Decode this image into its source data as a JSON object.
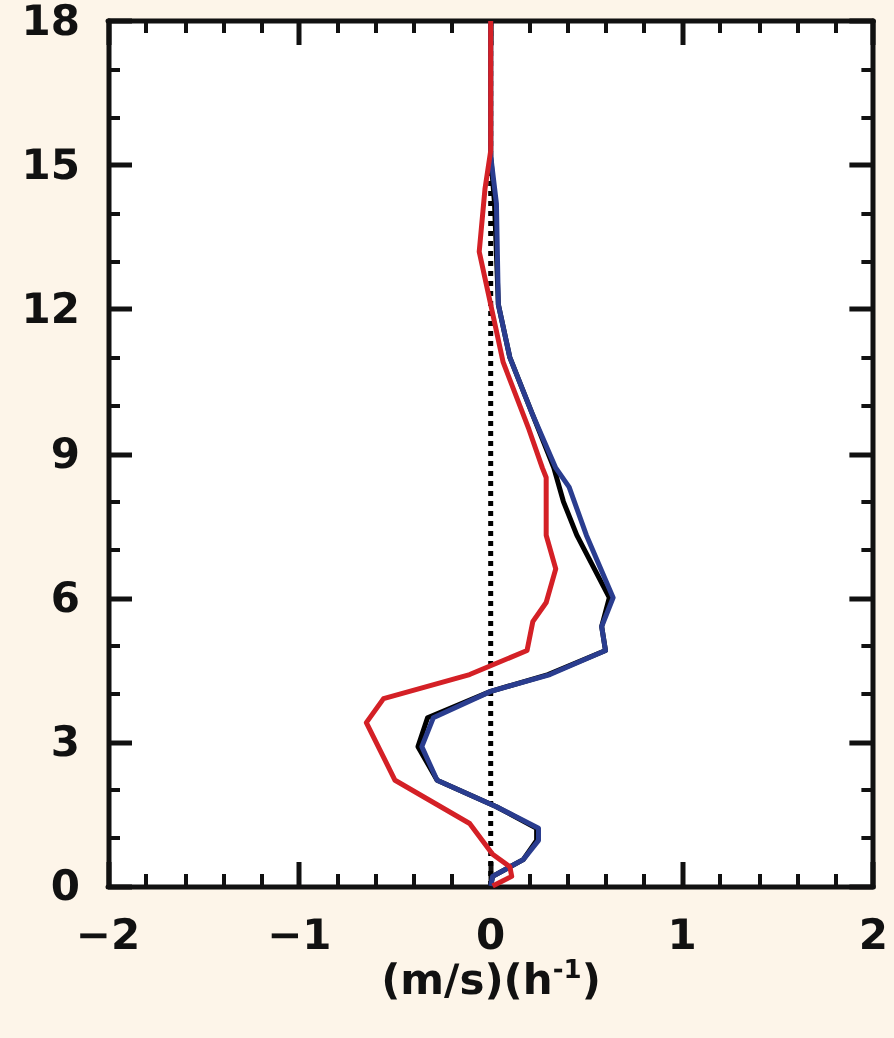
{
  "chart_data": {
    "type": "line",
    "xlabel": "(m/s)(h$^{-1}$)",
    "xlim": [
      -2,
      2
    ],
    "xticks": [
      -2,
      -1,
      0,
      1,
      2
    ],
    "ylim": [
      0,
      18
    ],
    "yticks": [
      0,
      3,
      6,
      9,
      12,
      15,
      18
    ],
    "marker": "none",
    "line_style": "solid",
    "ref_lines": [
      {
        "axis": "x",
        "value": 0,
        "color": "#000000",
        "line_style": "dotted"
      }
    ],
    "series": [
      {
        "color": "#000000",
        "x": [
          0,
          0.01,
          0.17,
          0.24,
          0.24,
          0.03,
          -0.28,
          -0.38,
          -0.33,
          0,
          0.3,
          0.6,
          0.58,
          0.62,
          0.45,
          0.38,
          0.33,
          0.22,
          0.1,
          0.04,
          0.02,
          0,
          0
        ],
        "values": [
          0,
          0.2,
          0.55,
          0.95,
          1.2,
          1.65,
          2.2,
          2.9,
          3.5,
          4.05,
          4.4,
          4.9,
          5.4,
          6,
          7.3,
          8,
          8.7,
          9.8,
          11,
          12.1,
          14.2,
          15.2,
          18
        ]
      },
      {
        "color": "#2a3d8f",
        "x": [
          0,
          0.01,
          0.17,
          0.25,
          0.25,
          0.03,
          -0.28,
          -0.36,
          -0.3,
          0,
          0.31,
          0.6,
          0.58,
          0.64,
          0.5,
          0.41,
          0.34,
          0.22,
          0.1,
          0.04,
          0.03,
          0,
          0
        ],
        "values": [
          0,
          0.2,
          0.55,
          0.95,
          1.2,
          1.65,
          2.2,
          2.9,
          3.5,
          4.05,
          4.4,
          4.9,
          5.4,
          6,
          7.3,
          8.3,
          8.7,
          9.8,
          11,
          12.1,
          14.2,
          15.2,
          18
        ]
      },
      {
        "color": "#d42026",
        "x": [
          0.01,
          0.11,
          0.1,
          0.01,
          -0.11,
          -0.5,
          -0.65,
          -0.56,
          -0.11,
          0.19,
          0.22,
          0.29,
          0.34,
          0.29,
          0.29,
          0.27,
          0.2,
          0.065,
          0,
          -0.06,
          -0.03,
          0,
          0
        ],
        "values": [
          0,
          0.2,
          0.4,
          0.66,
          1.3,
          2.2,
          3.4,
          3.9,
          4.4,
          4.9,
          5.5,
          5.9,
          6.6,
          7.3,
          8.5,
          8.7,
          9.5,
          10.9,
          12.1,
          13.2,
          14.5,
          15.3,
          18
        ]
      }
    ]
  }
}
